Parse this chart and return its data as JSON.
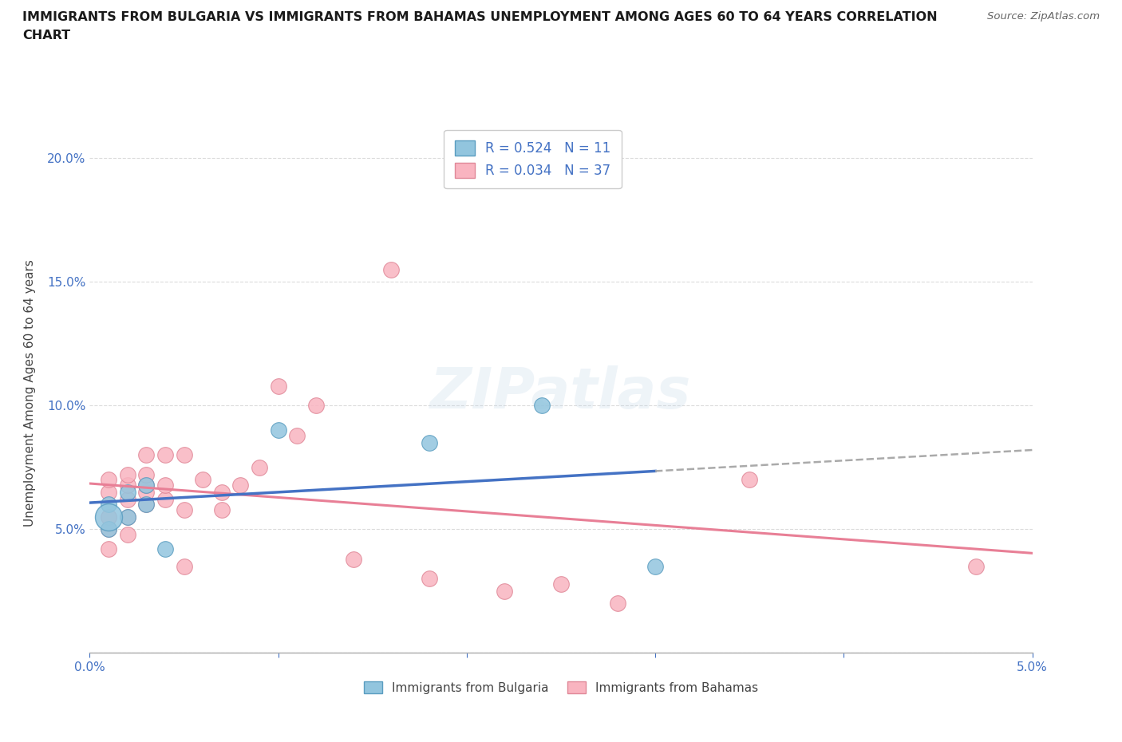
{
  "title_line1": "IMMIGRANTS FROM BULGARIA VS IMMIGRANTS FROM BAHAMAS UNEMPLOYMENT AMONG AGES 60 TO 64 YEARS CORRELATION",
  "title_line2": "CHART",
  "source": "Source: ZipAtlas.com",
  "ylabel_label": "Unemployment Among Ages 60 to 64 years",
  "xlim": [
    0.0,
    0.05
  ],
  "ylim": [
    0.0,
    0.21
  ],
  "xticks": [
    0.0,
    0.01,
    0.02,
    0.03,
    0.04,
    0.05
  ],
  "yticks": [
    0.0,
    0.05,
    0.1,
    0.15,
    0.2
  ],
  "bulgaria_x": [
    0.001,
    0.001,
    0.002,
    0.002,
    0.003,
    0.003,
    0.004,
    0.01,
    0.018,
    0.024,
    0.03
  ],
  "bulgaria_y": [
    0.05,
    0.06,
    0.055,
    0.065,
    0.06,
    0.068,
    0.042,
    0.09,
    0.085,
    0.1,
    0.035
  ],
  "bahamas_x": [
    0.001,
    0.001,
    0.001,
    0.001,
    0.001,
    0.002,
    0.002,
    0.002,
    0.002,
    0.002,
    0.003,
    0.003,
    0.003,
    0.003,
    0.003,
    0.004,
    0.004,
    0.004,
    0.005,
    0.005,
    0.005,
    0.006,
    0.007,
    0.007,
    0.008,
    0.009,
    0.01,
    0.011,
    0.012,
    0.014,
    0.016,
    0.018,
    0.022,
    0.025,
    0.028,
    0.035,
    0.047
  ],
  "bahamas_y": [
    0.042,
    0.05,
    0.055,
    0.065,
    0.07,
    0.048,
    0.055,
    0.062,
    0.068,
    0.072,
    0.06,
    0.065,
    0.068,
    0.072,
    0.08,
    0.062,
    0.068,
    0.08,
    0.035,
    0.058,
    0.08,
    0.07,
    0.058,
    0.065,
    0.068,
    0.075,
    0.108,
    0.088,
    0.1,
    0.038,
    0.155,
    0.03,
    0.025,
    0.028,
    0.02,
    0.07,
    0.035
  ],
  "bulgaria_color": "#92c5de",
  "bahamas_color": "#f9b4c0",
  "trend_color_bulgaria": "#4472c4",
  "trend_color_bahamas": "#e87f96",
  "trend_dash_color": "#aaaaaa",
  "R_bulgaria": 0.524,
  "N_bulgaria": 11,
  "R_bahamas": 0.034,
  "N_bahamas": 37,
  "watermark": "ZIPatlas",
  "bg_color": "#ffffff",
  "grid_color": "#cccccc",
  "tick_color": "#4472c4",
  "title_color": "#1a1a1a",
  "source_color": "#666666",
  "legend_text_color": "#4472c4"
}
